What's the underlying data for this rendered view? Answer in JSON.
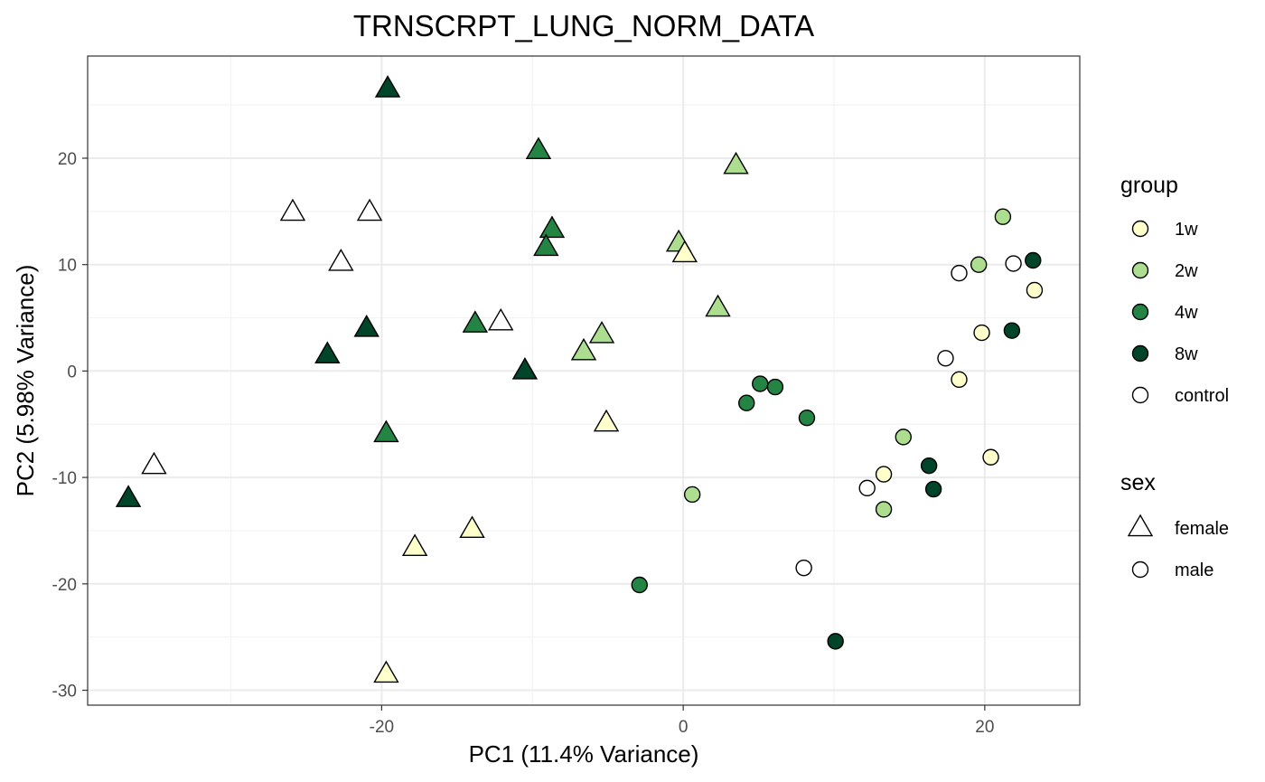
{
  "chart_data": {
    "type": "scatter",
    "title": "TRNSCRPT_LUNG_NORM_DATA",
    "xlabel": "PC1 (11.4% Variance)",
    "ylabel": "PC2 (5.98% Variance)",
    "xlim": [
      -39.5,
      26.3
    ],
    "ylim": [
      -31.4,
      29.6
    ],
    "xticks": [
      -20,
      0,
      20
    ],
    "yticks": [
      -30,
      -20,
      -10,
      0,
      10,
      20
    ],
    "grid": true,
    "legend_position": "right",
    "legends": [
      {
        "title": "group",
        "entries": [
          {
            "label": "1w",
            "color": "#ffffcc"
          },
          {
            "label": "2w",
            "color": "#addd8e"
          },
          {
            "label": "4w",
            "color": "#238443"
          },
          {
            "label": "8w",
            "color": "#004529"
          },
          {
            "label": "control",
            "color": "#ffffff"
          }
        ]
      },
      {
        "title": "sex",
        "entries": [
          {
            "label": "female",
            "shape": "triangle"
          },
          {
            "label": "male",
            "shape": "circle"
          }
        ]
      }
    ],
    "points": [
      {
        "x": -19.6,
        "y": 26.5,
        "group": "8w",
        "sex": "female"
      },
      {
        "x": -9.6,
        "y": 20.7,
        "group": "4w",
        "sex": "female"
      },
      {
        "x": 3.5,
        "y": 19.3,
        "group": "2w",
        "sex": "female"
      },
      {
        "x": -25.9,
        "y": 14.9,
        "group": "control",
        "sex": "female"
      },
      {
        "x": -20.8,
        "y": 14.9,
        "group": "control",
        "sex": "female"
      },
      {
        "x": -8.7,
        "y": 13.3,
        "group": "4w",
        "sex": "female"
      },
      {
        "x": -9.1,
        "y": 11.6,
        "group": "4w",
        "sex": "female"
      },
      {
        "x": -0.3,
        "y": 12.0,
        "group": "2w",
        "sex": "female"
      },
      {
        "x": 0.1,
        "y": 11.0,
        "group": "1w",
        "sex": "female"
      },
      {
        "x": -22.7,
        "y": 10.2,
        "group": "control",
        "sex": "female"
      },
      {
        "x": 2.3,
        "y": 5.9,
        "group": "2w",
        "sex": "female"
      },
      {
        "x": -12.1,
        "y": 4.6,
        "group": "control",
        "sex": "female"
      },
      {
        "x": -13.8,
        "y": 4.4,
        "group": "4w",
        "sex": "female"
      },
      {
        "x": -21.0,
        "y": 4.0,
        "group": "8w",
        "sex": "female"
      },
      {
        "x": -5.4,
        "y": 3.4,
        "group": "2w",
        "sex": "female"
      },
      {
        "x": -6.6,
        "y": 1.8,
        "group": "2w",
        "sex": "female"
      },
      {
        "x": -23.6,
        "y": 1.5,
        "group": "8w",
        "sex": "female"
      },
      {
        "x": -10.5,
        "y": 0.0,
        "group": "8w",
        "sex": "female"
      },
      {
        "x": -5.1,
        "y": -4.9,
        "group": "1w",
        "sex": "female"
      },
      {
        "x": -19.7,
        "y": -5.9,
        "group": "4w",
        "sex": "female"
      },
      {
        "x": -35.1,
        "y": -8.9,
        "group": "control",
        "sex": "female"
      },
      {
        "x": -36.8,
        "y": -12.0,
        "group": "8w",
        "sex": "female"
      },
      {
        "x": -14.0,
        "y": -14.9,
        "group": "1w",
        "sex": "female"
      },
      {
        "x": -17.8,
        "y": -16.6,
        "group": "1w",
        "sex": "female"
      },
      {
        "x": -19.7,
        "y": -28.5,
        "group": "1w",
        "sex": "female"
      },
      {
        "x": 21.2,
        "y": 14.5,
        "group": "2w",
        "sex": "male"
      },
      {
        "x": 23.2,
        "y": 10.4,
        "group": "8w",
        "sex": "male"
      },
      {
        "x": 19.6,
        "y": 10.0,
        "group": "2w",
        "sex": "male"
      },
      {
        "x": 21.9,
        "y": 10.1,
        "group": "control",
        "sex": "male"
      },
      {
        "x": 18.3,
        "y": 9.2,
        "group": "control",
        "sex": "male"
      },
      {
        "x": 23.3,
        "y": 7.6,
        "group": "1w",
        "sex": "male"
      },
      {
        "x": 21.8,
        "y": 3.8,
        "group": "8w",
        "sex": "male"
      },
      {
        "x": 19.8,
        "y": 3.6,
        "group": "1w",
        "sex": "male"
      },
      {
        "x": 17.4,
        "y": 1.2,
        "group": "control",
        "sex": "male"
      },
      {
        "x": 18.3,
        "y": -0.8,
        "group": "1w",
        "sex": "male"
      },
      {
        "x": 5.1,
        "y": -1.2,
        "group": "4w",
        "sex": "male"
      },
      {
        "x": 6.1,
        "y": -1.5,
        "group": "4w",
        "sex": "male"
      },
      {
        "x": 4.2,
        "y": -3.0,
        "group": "4w",
        "sex": "male"
      },
      {
        "x": 8.2,
        "y": -4.4,
        "group": "4w",
        "sex": "male"
      },
      {
        "x": 14.6,
        "y": -6.2,
        "group": "2w",
        "sex": "male"
      },
      {
        "x": 20.4,
        "y": -8.1,
        "group": "1w",
        "sex": "male"
      },
      {
        "x": 16.3,
        "y": -8.9,
        "group": "8w",
        "sex": "male"
      },
      {
        "x": 13.3,
        "y": -9.7,
        "group": "1w",
        "sex": "male"
      },
      {
        "x": 12.2,
        "y": -11.0,
        "group": "control",
        "sex": "male"
      },
      {
        "x": 16.6,
        "y": -11.1,
        "group": "8w",
        "sex": "male"
      },
      {
        "x": 0.6,
        "y": -11.6,
        "group": "2w",
        "sex": "male"
      },
      {
        "x": 13.3,
        "y": -13.0,
        "group": "2w",
        "sex": "male"
      },
      {
        "x": 8.0,
        "y": -18.5,
        "group": "control",
        "sex": "male"
      },
      {
        "x": -2.9,
        "y": -20.1,
        "group": "4w",
        "sex": "male"
      },
      {
        "x": 10.1,
        "y": -25.4,
        "group": "8w",
        "sex": "male"
      }
    ]
  }
}
